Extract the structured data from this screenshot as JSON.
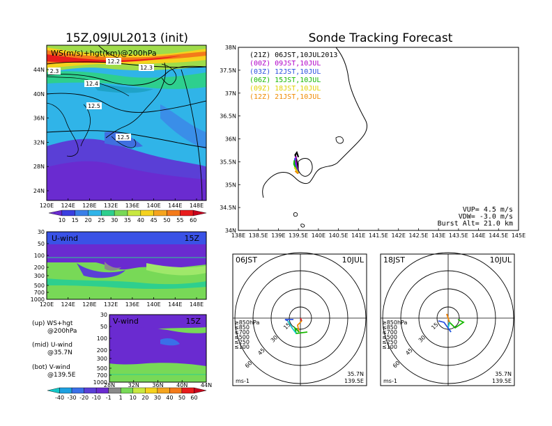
{
  "title_left": "15Z,09JUL2013 (init)",
  "title_right": "Sonde Tracking Forecast",
  "map_panel": {
    "label": "WS(m/s)+hgt(km)@200hPa",
    "contours": [
      "12.2",
      "12.3",
      "2.3",
      "12.4",
      "12.5",
      "12.5"
    ],
    "x_ticks": [
      "120E",
      "124E",
      "128E",
      "132E",
      "136E",
      "140E",
      "144E",
      "148E"
    ],
    "y_ticks": [
      "44N",
      "40N",
      "36N",
      "32N",
      "28N",
      "24N"
    ]
  },
  "colorbar_top": [
    "10",
    "15",
    "20",
    "25",
    "30",
    "35",
    "40",
    "45",
    "50",
    "55",
    "60"
  ],
  "u_panel": {
    "label": "U-wind",
    "time": "15Z",
    "y_ticks": [
      "30",
      "50",
      "100",
      "200",
      "300",
      "500",
      "700",
      "1000"
    ],
    "x_ticks": [
      "120E",
      "124E",
      "128E",
      "132E",
      "136E",
      "140E",
      "144E",
      "148E"
    ]
  },
  "v_panel": {
    "label": "V-wind",
    "time": "15Z",
    "y_ticks": [
      "30",
      "50",
      "100",
      "200",
      "300",
      "500",
      "700",
      "1000"
    ],
    "x_ticks": [
      "28N",
      "32N",
      "36N",
      "40N",
      "44N"
    ]
  },
  "notes": [
    {
      "l1": "(up) WS+hgt",
      "l2": "@200hPa"
    },
    {
      "l1": "(mid) U-wind",
      "l2": "@35.7N"
    },
    {
      "l1": "(bot) V-wind",
      "l2": "@139.5E"
    }
  ],
  "colorbar_bottom": [
    "-40",
    "-30",
    "-20",
    "-10",
    "-1",
    "1",
    "10",
    "20",
    "30",
    "40",
    "50",
    "60"
  ],
  "tracking": {
    "x_ticks": [
      "138E",
      "138.5E",
      "139E",
      "139.5E",
      "140E",
      "140.5E",
      "141E",
      "141.5E",
      "142E",
      "142.5E",
      "143E",
      "143.5E",
      "144E",
      "144.5E",
      "145E"
    ],
    "y_ticks": [
      "38N",
      "37.5N",
      "37N",
      "36.5N",
      "36N",
      "35.5N",
      "35N",
      "34.5N",
      "34N"
    ],
    "legend": [
      {
        "text": "(21Z) 06JST,10JUL2013",
        "color": "#000000"
      },
      {
        "text": "(00Z) 09JST,10JUL",
        "color": "#b000c8"
      },
      {
        "text": "(03Z) 12JST,10JUL",
        "color": "#2a4fe0"
      },
      {
        "text": "(06Z) 15JST,10JUL",
        "color": "#17b800"
      },
      {
        "text": "(09Z) 18JST,10JUL",
        "color": "#e0d000"
      },
      {
        "text": "(12Z) 21JST,10JUL",
        "color": "#f08a00"
      }
    ],
    "info": [
      "VUP= 4.5 m/s",
      "VDW= -3.0 m/s",
      "Burst Alt= 21.0 km"
    ]
  },
  "polar_left": {
    "time": "06JST",
    "date": "10JUL",
    "rings": [
      "15",
      "30",
      "45",
      "60"
    ],
    "levels": [
      "≥850hPa",
      "≤850",
      "≤700",
      "≤500",
      "≤250",
      "≤100"
    ],
    "unit": "ms-1",
    "lat": "35.7N",
    "lon": "139.5E"
  },
  "polar_right": {
    "time": "18JST",
    "date": "10JUL",
    "rings": [
      "15",
      "30",
      "45",
      "60"
    ],
    "levels": [
      "≥850hPa",
      "≤850",
      "≤700",
      "≤500",
      "≤250",
      "≤100"
    ],
    "unit": "ms-1",
    "lat": "35.7N",
    "lon": "139.5E"
  },
  "chart_data": [
    {
      "type": "heatmap",
      "title": "WS(m/s)+hgt(km)@200hPa",
      "xlim": [
        120,
        150
      ],
      "ylim": [
        22,
        47
      ],
      "colorbar": [
        10,
        15,
        20,
        25,
        30,
        35,
        40,
        45,
        50,
        55,
        60
      ],
      "contour_labels_km": [
        12.2,
        12.3,
        2.3,
        12.4,
        12.5,
        12.5
      ]
    },
    {
      "type": "heatmap",
      "title": "U-wind",
      "y_levels_hpa": [
        30,
        50,
        100,
        200,
        300,
        500,
        700,
        1000
      ],
      "xlim": [
        120,
        150
      ]
    },
    {
      "type": "heatmap",
      "title": "V-wind",
      "y_levels_hpa": [
        30,
        50,
        100,
        200,
        300,
        500,
        700,
        1000
      ],
      "xlim": [
        28,
        44
      ],
      "colorbar": [
        -40,
        -30,
        -20,
        -10,
        -1,
        1,
        10,
        20,
        30,
        40,
        50,
        60
      ]
    },
    {
      "type": "line",
      "title": "Sonde Tracking Forecast",
      "xlim": [
        138,
        145
      ],
      "ylim": [
        34,
        38
      ],
      "series": [
        {
          "name": "(21Z) 06JST,10JUL2013",
          "x": [
            139.5,
            139.48,
            139.45,
            139.42,
            139.46,
            139.5
          ],
          "y": [
            35.25,
            35.4,
            35.55,
            35.65,
            35.7,
            35.6
          ]
        },
        {
          "name": "(00Z) 09JST,10JUL",
          "x": [
            139.5,
            139.46,
            139.43,
            139.44
          ],
          "y": [
            35.25,
            35.38,
            35.52,
            35.62
          ]
        },
        {
          "name": "(03Z) 12JST,10JUL",
          "x": [
            139.5,
            139.45,
            139.4,
            139.42
          ],
          "y": [
            35.25,
            35.35,
            35.5,
            35.58
          ]
        },
        {
          "name": "(06Z) 15JST,10JUL",
          "x": [
            139.5,
            139.45,
            139.39,
            139.4
          ],
          "y": [
            35.25,
            35.32,
            35.45,
            35.53
          ]
        },
        {
          "name": "(09Z) 18JST,10JUL",
          "x": [
            139.5,
            139.46,
            139.4
          ],
          "y": [
            35.25,
            35.3,
            35.38
          ]
        },
        {
          "name": "(12Z) 21JST,10JUL",
          "x": [
            139.5,
            139.48,
            139.42
          ],
          "y": [
            35.25,
            35.25,
            35.3
          ]
        }
      ]
    }
  ]
}
